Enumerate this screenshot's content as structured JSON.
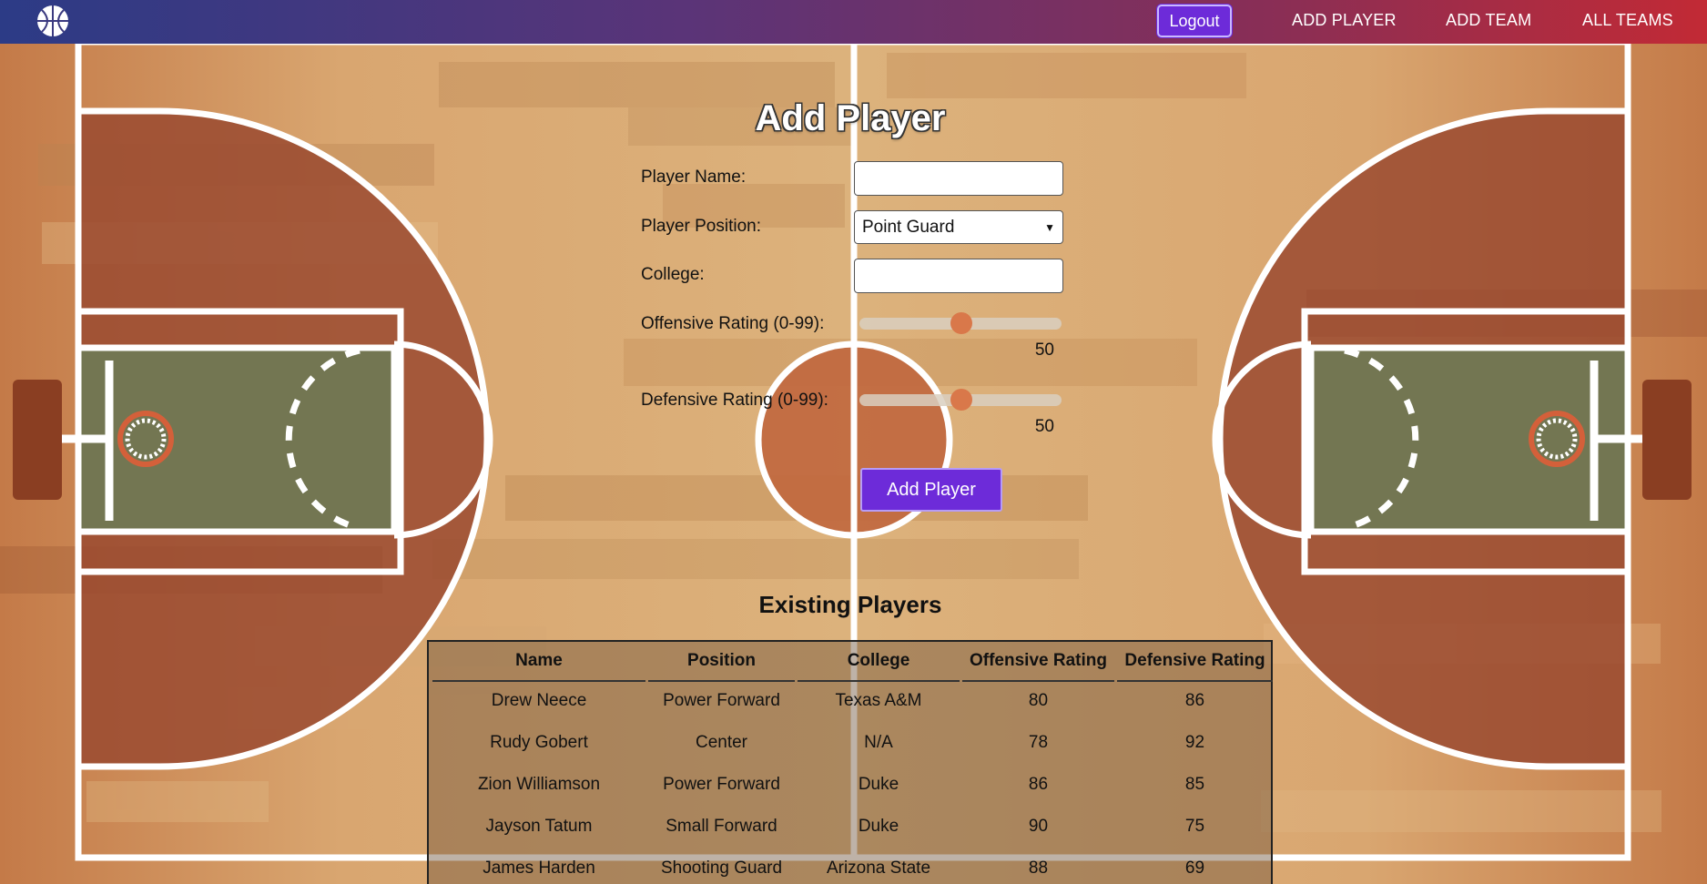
{
  "nav": {
    "logout_label": "Logout",
    "links": [
      "ADD PLAYER",
      "ADD TEAM",
      "ALL TEAMS"
    ]
  },
  "form": {
    "title": "Add Player",
    "name_label": "Player Name:",
    "name_value": "",
    "position_label": "Player Position:",
    "position_value": "Point Guard",
    "college_label": "College:",
    "college_value": "",
    "offensive_label": "Offensive Rating (0-99):",
    "offensive_value": 50,
    "defensive_label": "Defensive Rating (0-99):",
    "defensive_value": 50,
    "rating_max": 99,
    "submit_label": "Add Player"
  },
  "players": {
    "title": "Existing Players",
    "headers": [
      "Name",
      "Position",
      "College",
      "Offensive Rating",
      "Defensive Rating"
    ],
    "rows": [
      [
        "Drew Neece",
        "Power Forward",
        "Texas A&M",
        "80",
        "86"
      ],
      [
        "Rudy Gobert",
        "Center",
        "N/A",
        "78",
        "92"
      ],
      [
        "Zion Williamson",
        "Power Forward",
        "Duke",
        "86",
        "85"
      ],
      [
        "Jayson Tatum",
        "Small Forward",
        "Duke",
        "90",
        "75"
      ],
      [
        "James Harden",
        "Shooting Guard",
        "Arizona State",
        "88",
        "69"
      ]
    ]
  },
  "colors": {
    "accent": "#6d2bd9",
    "slider_thumb": "#d9784a",
    "court_paint": "#6e7a55",
    "court_arc": "#9a4a30"
  },
  "icons": {
    "logo": "basketball-icon",
    "select": "chevron-down-icon"
  }
}
